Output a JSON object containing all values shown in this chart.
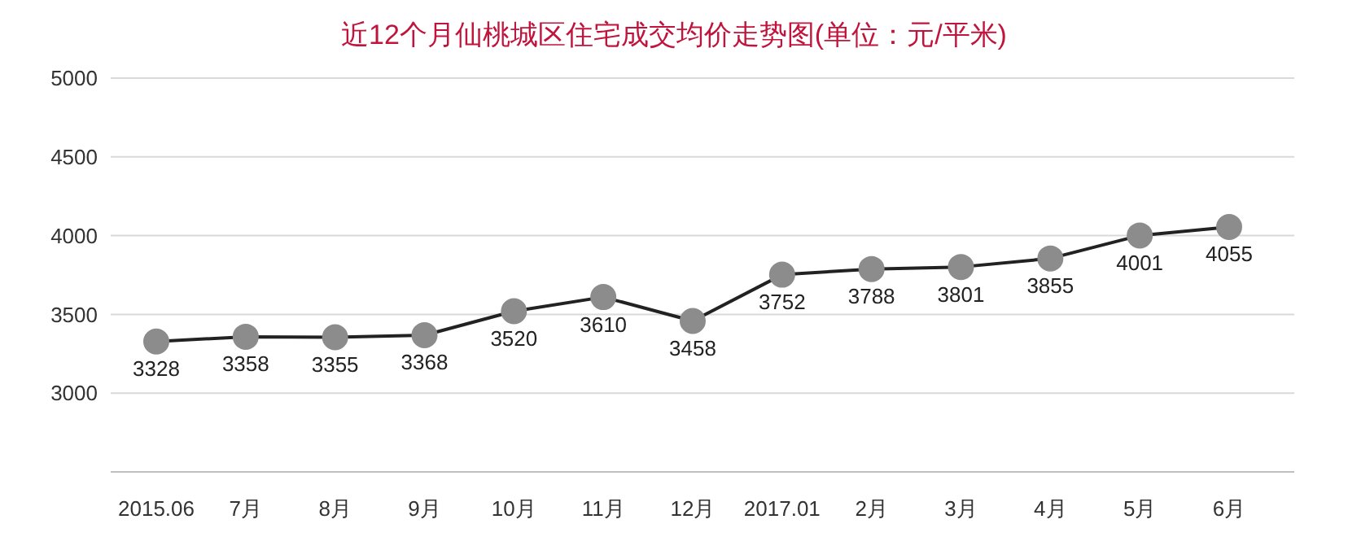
{
  "chart_data": {
    "type": "line",
    "title": "近12个月仙桃城区住宅成交均价走势图(单位：元/平米)",
    "categories": [
      "2015.06",
      "7月",
      "8月",
      "9月",
      "10月",
      "11月",
      "12月",
      "2017.01",
      "2月",
      "3月",
      "4月",
      "5月",
      "6月"
    ],
    "series": [
      {
        "color": "#222222",
        "values": [
          3328,
          3358,
          3355,
          3368,
          3520,
          3610,
          3458,
          3752,
          3788,
          3801,
          3855,
          4001,
          4055
        ]
      }
    ],
    "ylim": [
      2500,
      5000
    ],
    "yticks": [
      {
        "value": 2500,
        "label": null
      },
      3000,
      3500,
      4000,
      4500,
      5000
    ],
    "grid": "y",
    "marker": "circle",
    "data_labels": true
  }
}
